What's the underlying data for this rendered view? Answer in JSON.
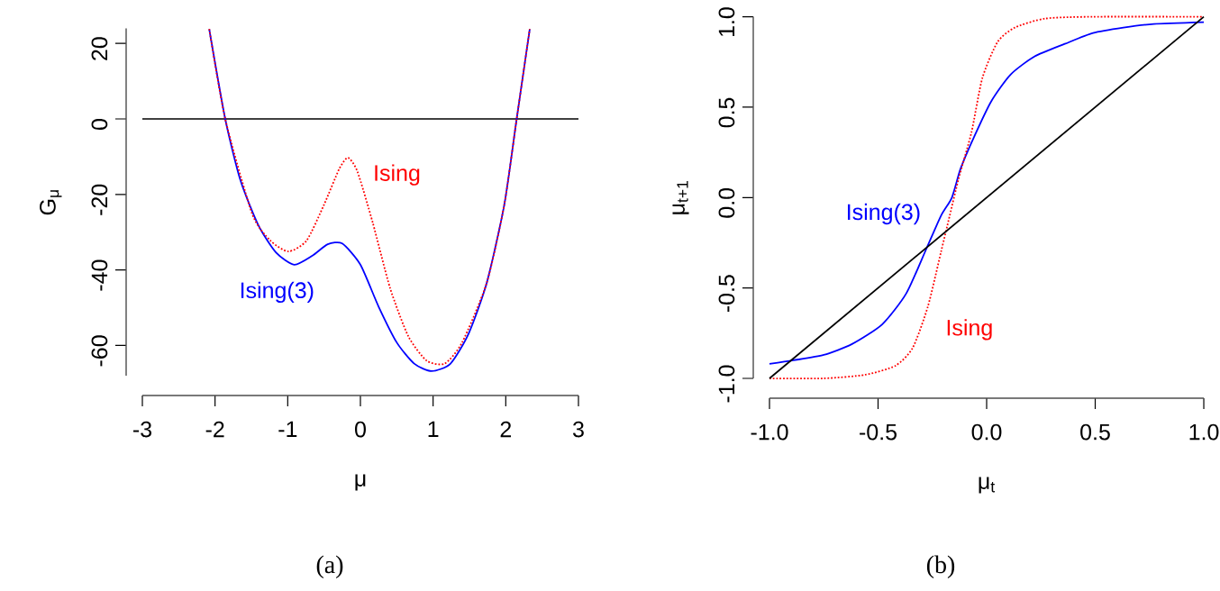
{
  "chart_data": [
    {
      "type": "line",
      "xlabel": "μ",
      "ylabel": "G$_{μ}$",
      "xlim": [
        -3,
        3
      ],
      "ylim": [
        -68,
        24
      ],
      "xticks": [
        -3,
        -2,
        -1,
        0,
        1,
        2,
        3
      ],
      "yticks": [
        -60,
        -40,
        -20,
        0,
        20
      ],
      "series": [
        {
          "name": "Ising(3)",
          "color": "#0000ff",
          "line_style": "solid",
          "x": [
            -2.08,
            -1.86,
            -1.65,
            -1.4,
            -1.16,
            -0.91,
            -0.66,
            -0.45,
            -0.25,
            0,
            0.25,
            0.5,
            0.74,
            0.98,
            1.24,
            1.49,
            1.74,
            1.98,
            2.15,
            2.33
          ],
          "values": [
            23.8,
            0,
            -16.3,
            -28.3,
            -35.4,
            -38.6,
            -36.2,
            -33.2,
            -33,
            -38.6,
            -49.7,
            -59.2,
            -64.8,
            -66.8,
            -64.8,
            -56.8,
            -43.3,
            -22.7,
            0,
            23.8
          ]
        },
        {
          "name": "Ising",
          "color": "#ff0000",
          "line_style": "dotted",
          "x": [
            -2.08,
            -1.86,
            -1.49,
            -1.24,
            -0.99,
            -0.74,
            -0.5,
            -0.29,
            -0.17,
            -0.04,
            0.17,
            0.41,
            0.66,
            0.91,
            1.16,
            1.4,
            1.74,
            1.98,
            2.15,
            2.33
          ],
          "values": [
            23.8,
            0,
            -25.1,
            -32.2,
            -35.1,
            -32.2,
            -22.7,
            -13.2,
            -10.3,
            -14,
            -27.5,
            -44.9,
            -57.6,
            -64,
            -64.8,
            -59.2,
            -43.3,
            -22.7,
            0,
            23.8
          ]
        }
      ],
      "ref_lines": [
        {
          "axis": "y",
          "value": 0,
          "color": "#000000"
        }
      ],
      "annotations": [
        "(a)"
      ]
    },
    {
      "type": "line",
      "xlabel": "μ$_{t}$",
      "ylabel": "μ$_{t+1}$",
      "xlim": [
        -1,
        1
      ],
      "ylim": [
        -1,
        1
      ],
      "xticks": [
        {
          "value": -1,
          "label": "-1.0"
        },
        {
          "value": -0.5,
          "label": "-0.5"
        },
        {
          "value": 0,
          "label": "0.0"
        },
        {
          "value": 0.5,
          "label": "0.5"
        },
        {
          "value": 1,
          "label": "1.0"
        }
      ],
      "yticks": [
        {
          "value": -1,
          "label": "-1.0"
        },
        {
          "value": -0.5,
          "label": "-0.5"
        },
        {
          "value": 0,
          "label": "0.0"
        },
        {
          "value": 0.5,
          "label": "0.5"
        },
        {
          "value": 1,
          "label": "1.0"
        }
      ],
      "series": [
        {
          "name": "Ising(3)",
          "color": "#0000ff",
          "line_style": "solid",
          "x": [
            -1,
            -0.89,
            -0.75,
            -0.62,
            -0.48,
            -0.37,
            -0.28,
            -0.21,
            -0.16,
            -0.12,
            -0.06,
            0.02,
            0.11,
            0.22,
            0.36,
            0.49,
            0.63,
            0.77,
            1
          ],
          "values": [
            -0.92,
            -0.9,
            -0.87,
            -0.81,
            -0.7,
            -0.53,
            -0.29,
            -0.1,
            0,
            0.16,
            0.33,
            0.53,
            0.68,
            0.78,
            0.85,
            0.91,
            0.94,
            0.96,
            0.97
          ]
        },
        {
          "name": "Ising",
          "color": "#ff0000",
          "line_style": "dotted",
          "x": [
            -1,
            -0.75,
            -0.56,
            -0.42,
            -0.34,
            -0.27,
            -0.21,
            -0.17,
            -0.13,
            -0.07,
            -0.02,
            0.05,
            0.13,
            0.27,
            0.49,
            1
          ],
          "values": [
            -1,
            -1,
            -0.98,
            -0.93,
            -0.83,
            -0.6,
            -0.3,
            -0.1,
            0.1,
            0.36,
            0.66,
            0.86,
            0.94,
            0.99,
            1,
            1
          ]
        },
        {
          "color": "#000000",
          "line_style": "solid",
          "x": [
            -1,
            1
          ],
          "values": [
            -1,
            1
          ]
        }
      ],
      "annotations": [
        "(b)"
      ]
    }
  ]
}
